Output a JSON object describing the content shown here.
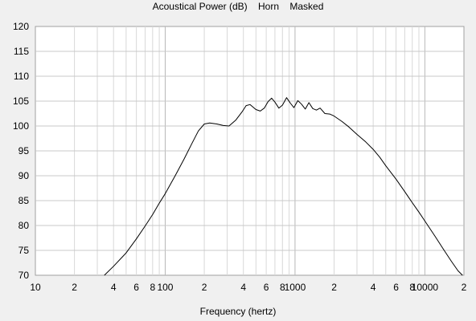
{
  "chart_data": {
    "type": "line",
    "title": "Acoustical Power (dB)    Horn    Masked",
    "xlabel": "Frequency (hertz)",
    "ylabel": "",
    "x_scale": "log",
    "xlim": [
      10,
      20000
    ],
    "ylim": [
      70,
      120
    ],
    "grid": true,
    "y_ticks": [
      70,
      75,
      80,
      85,
      90,
      95,
      100,
      105,
      110,
      115,
      120
    ],
    "x_ticks": [
      {
        "value": 10,
        "label": "10"
      },
      {
        "value": 20,
        "label": "2"
      },
      {
        "value": 40,
        "label": "4"
      },
      {
        "value": 60,
        "label": "6"
      },
      {
        "value": 80,
        "label": "8"
      },
      {
        "value": 100,
        "label": "100"
      },
      {
        "value": 200,
        "label": "2"
      },
      {
        "value": 400,
        "label": "4"
      },
      {
        "value": 600,
        "label": "6"
      },
      {
        "value": 800,
        "label": "8"
      },
      {
        "value": 1000,
        "label": "1000"
      },
      {
        "value": 2000,
        "label": "2"
      },
      {
        "value": 4000,
        "label": "4"
      },
      {
        "value": 6000,
        "label": "6"
      },
      {
        "value": 8000,
        "label": "8"
      },
      {
        "value": 10000,
        "label": "10000"
      },
      {
        "value": 20000,
        "label": "2"
      }
    ],
    "series": [
      {
        "color": "#000000",
        "x": [
          34,
          40,
          50,
          60,
          70,
          80,
          90,
          100,
          120,
          140,
          160,
          180,
          200,
          220,
          250,
          280,
          310,
          350,
          390,
          420,
          450,
          500,
          540,
          580,
          620,
          660,
          700,
          750,
          800,
          860,
          920,
          980,
          1050,
          1120,
          1200,
          1280,
          1370,
          1460,
          1560,
          1700,
          1850,
          2000,
          2300,
          2600,
          3000,
          3500,
          4000,
          4500,
          5000,
          6000,
          7000,
          8000,
          9000,
          10000,
          12000,
          14000,
          16000,
          18000,
          19500
        ],
        "y": [
          70,
          71.8,
          74.5,
          77.3,
          79.9,
          82.2,
          84.5,
          86.4,
          90.1,
          93.4,
          96.4,
          99.0,
          100.4,
          100.6,
          100.4,
          100.1,
          100.0,
          101.2,
          102.8,
          104.1,
          104.3,
          103.3,
          103.0,
          103.6,
          104.9,
          105.6,
          104.8,
          103.6,
          104.2,
          105.7,
          104.6,
          103.7,
          105.1,
          104.4,
          103.4,
          104.7,
          103.5,
          103.2,
          103.6,
          102.5,
          102.4,
          102.0,
          100.9,
          99.8,
          98.3,
          96.8,
          95.3,
          93.7,
          92.0,
          89.3,
          86.8,
          84.6,
          82.7,
          80.9,
          77.8,
          75.1,
          72.8,
          70.9,
          69.6
        ]
      }
    ]
  }
}
